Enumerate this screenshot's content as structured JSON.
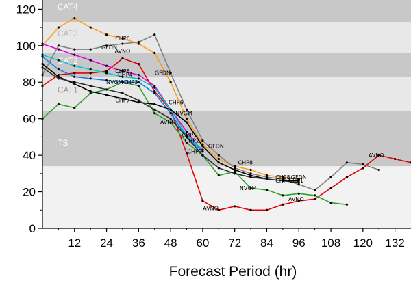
{
  "chart_data": {
    "type": "line",
    "title": "",
    "xlabel": "Forecast Period (hr)",
    "ylabel": "",
    "xlim": [
      0,
      138
    ],
    "ylim": [
      0,
      125
    ],
    "xticks": [
      12,
      24,
      36,
      48,
      60,
      72,
      84,
      96,
      108,
      120,
      132
    ],
    "yticks": [
      0,
      20,
      40,
      60,
      80,
      100,
      120
    ],
    "grid": false,
    "legend": "none",
    "bands": [
      {
        "label": "TS",
        "y0": 34,
        "y1": 64,
        "fill": "#c8c8c8",
        "text_color": "#ffffff"
      },
      {
        "label": "CAT1",
        "y0": 64,
        "y1": 83,
        "fill": "#e8e8e8",
        "text_color": "#9a9a9a"
      },
      {
        "label": "CAT2",
        "y0": 83,
        "y1": 96,
        "fill": "#c8c8c8",
        "text_color": "#ffffff"
      },
      {
        "label": "CAT3",
        "y0": 96,
        "y1": 113,
        "fill": "#e8e8e8",
        "text_color": "#b4b4b4"
      },
      {
        "label": "CAT4",
        "y0": 113,
        "y1": 125,
        "fill": "#c8c8c8",
        "text_color": "#ffffff"
      }
    ],
    "series": [
      {
        "color": "#ff9d1e",
        "x": [
          0,
          6,
          12,
          18,
          24,
          30,
          36,
          42,
          48,
          54,
          60,
          66,
          72,
          78,
          84,
          90,
          96
        ],
        "y": [
          100,
          110,
          115,
          110,
          106,
          104,
          101,
          96,
          80,
          60,
          46,
          38,
          34,
          32,
          29,
          28,
          27
        ]
      },
      {
        "color": "#808080",
        "x": [
          0,
          6,
          12,
          18,
          24,
          30,
          36,
          42,
          48,
          54,
          60,
          66,
          72,
          78,
          84,
          90,
          96,
          102,
          108,
          114,
          120,
          126
        ],
        "y": [
          84,
          100,
          98,
          98,
          100,
          101,
          102,
          106,
          85,
          65,
          48,
          40,
          33,
          30,
          28,
          27,
          24,
          21,
          28,
          36,
          35,
          32
        ]
      },
      {
        "color": "#e40000",
        "x": [
          0,
          6,
          12,
          18,
          24,
          30,
          36,
          42,
          48,
          54,
          60,
          66,
          72,
          78,
          84,
          90,
          96,
          102,
          108,
          114,
          120,
          126,
          132,
          138
        ],
        "y": [
          78,
          84,
          85,
          85,
          86,
          93,
          90,
          75,
          65,
          41,
          15,
          10,
          12,
          10,
          10,
          13,
          15,
          16,
          22,
          28,
          33,
          40,
          38,
          36
        ]
      },
      {
        "color": "#2aa52a",
        "x": [
          0,
          6,
          12,
          18,
          24,
          30,
          36,
          42,
          48,
          54,
          60,
          66,
          72,
          78,
          84,
          90,
          96,
          102,
          108,
          114
        ],
        "y": [
          60,
          68,
          66,
          74,
          76,
          80,
          78,
          63,
          58,
          47,
          40,
          29,
          31,
          22,
          21,
          18,
          19,
          18,
          14,
          13
        ]
      },
      {
        "color": "#e400e4",
        "x": [
          0,
          6,
          12,
          18,
          24,
          30,
          36,
          42,
          48,
          54,
          60
        ],
        "y": [
          101,
          98,
          95,
          92,
          89,
          86,
          84,
          78,
          65,
          53,
          42
        ]
      },
      {
        "color": "#00c8c8",
        "x": [
          0,
          6,
          12,
          18,
          24,
          30,
          36,
          42,
          48,
          54,
          60
        ],
        "y": [
          95,
          92,
          89,
          87,
          85,
          83,
          82,
          77,
          65,
          51,
          43
        ]
      },
      {
        "color": "#1e78f0",
        "x": [
          0,
          6,
          12,
          18,
          24,
          30,
          36,
          42,
          48,
          54,
          60
        ],
        "y": [
          94,
          87,
          83,
          82,
          81,
          80,
          80,
          74,
          63,
          50,
          42
        ]
      },
      {
        "color": "#000000",
        "x": [
          0,
          6,
          12,
          18,
          24,
          30,
          36,
          42,
          48,
          54,
          60,
          66,
          72,
          78,
          84,
          90,
          96
        ],
        "y": [
          90,
          83,
          79,
          75,
          73,
          71,
          69,
          68,
          65,
          58,
          45,
          36,
          32,
          29,
          27,
          26,
          26
        ]
      },
      {
        "color": "#303030",
        "x": [
          0,
          6,
          12,
          18,
          24,
          30,
          36,
          42,
          48,
          54,
          60,
          66,
          72,
          78,
          84,
          90,
          96
        ],
        "y": [
          88,
          82,
          80,
          78,
          76,
          74,
          70,
          65,
          60,
          50,
          40,
          33,
          30,
          28,
          27,
          26,
          25
        ]
      }
    ],
    "annotations": [
      {
        "text": "CHP6",
        "x": 30,
        "y": 103
      },
      {
        "text": "GFDN",
        "x": 25,
        "y": 98
      },
      {
        "text": "AVNO",
        "x": 30,
        "y": 96
      },
      {
        "text": "GFDN",
        "x": 45,
        "y": 84
      },
      {
        "text": "CHP6",
        "x": 50,
        "y": 68
      },
      {
        "text": "NVGM",
        "x": 53,
        "y": 62
      },
      {
        "text": "AVNO",
        "x": 47,
        "y": 57
      },
      {
        "text": "CHP8",
        "x": 30,
        "y": 85
      },
      {
        "text": "CHP4",
        "x": 31,
        "y": 83
      },
      {
        "text": "NVGM",
        "x": 27,
        "y": 79
      },
      {
        "text": "CHP3",
        "x": 33,
        "y": 79
      },
      {
        "text": "CHP7",
        "x": 30,
        "y": 69
      },
      {
        "text": "CHP1",
        "x": 55,
        "y": 50
      },
      {
        "text": "CHP2",
        "x": 56,
        "y": 47
      },
      {
        "text": "CHP7",
        "x": 57,
        "y": 41
      },
      {
        "text": "GFDN",
        "x": 65,
        "y": 44
      },
      {
        "text": "CHP8",
        "x": 76,
        "y": 35
      },
      {
        "text": "NVGM",
        "x": 77,
        "y": 21
      },
      {
        "text": "CHP8",
        "x": 90,
        "y": 27
      },
      {
        "text": "CHP7",
        "x": 90,
        "y": 25
      },
      {
        "text": "GFDN",
        "x": 96,
        "y": 27
      },
      {
        "text": "CHP1",
        "x": 95,
        "y": 25
      },
      {
        "text": "AVNO",
        "x": 63,
        "y": 10
      },
      {
        "text": "AVNO",
        "x": 95,
        "y": 15
      },
      {
        "text": "AVNO",
        "x": 125,
        "y": 39
      }
    ]
  }
}
